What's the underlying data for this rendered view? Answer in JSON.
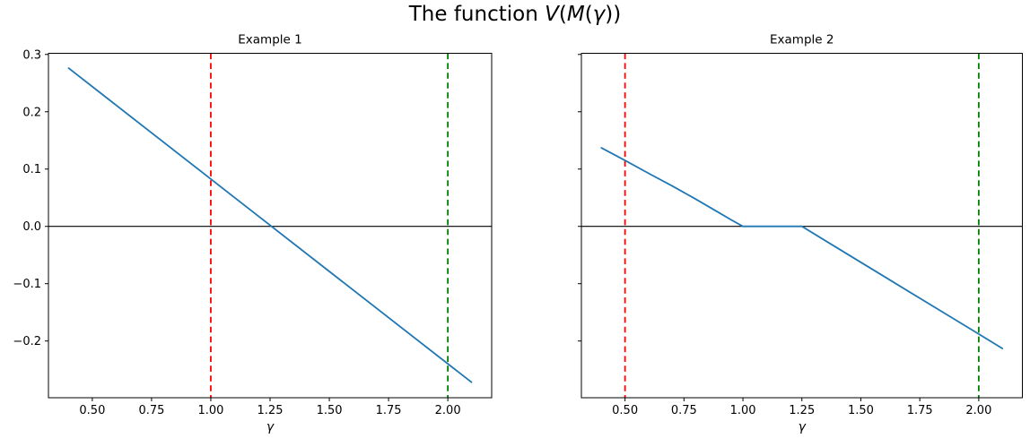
{
  "figure": {
    "background": "#ffffff",
    "suptitle": {
      "text": "The function V(M(γ))",
      "segments": [
        {
          "t": "The function ",
          "i": false
        },
        {
          "t": "V",
          "i": true
        },
        {
          "t": "(",
          "i": false
        },
        {
          "t": "M",
          "i": true
        },
        {
          "t": "(",
          "i": false
        },
        {
          "t": "γ",
          "i": true
        },
        {
          "t": "))",
          "i": false
        }
      ]
    }
  },
  "chart_data": {
    "type": "line",
    "title": "The function V(M(γ))",
    "xlabel": "γ",
    "ylabel": "",
    "grid": false,
    "legend_position": "none",
    "xlim": [
      0.315,
      2.185
    ],
    "ylim": [
      -0.299,
      0.302
    ],
    "x_ticks": {
      "values": [
        0.5,
        0.75,
        1.0,
        1.25,
        1.5,
        1.75,
        2.0
      ],
      "labels": [
        "0.50",
        "0.75",
        "1.00",
        "1.25",
        "1.50",
        "1.75",
        "2.00"
      ]
    },
    "y_ticks": {
      "values": [
        0.3,
        0.2,
        0.1,
        0.0,
        -0.1,
        -0.2
      ],
      "labels": [
        "0.3",
        "0.2",
        "0.1",
        "0.0",
        "−0.1",
        "−0.2"
      ]
    },
    "line_color": "#1f77b4",
    "zero_line_color": "#000000",
    "panels": [
      {
        "title": "Example 1",
        "show_y_tick_labels": true,
        "hlines": [
          {
            "name": "zero-line",
            "y": 0.0,
            "color": "#000000",
            "style": "solid"
          }
        ],
        "vlines": [
          {
            "name": "red-dashed-vline",
            "x": 1.0,
            "color": "#ff0000",
            "style": "dashed"
          },
          {
            "name": "green-dashed-vline",
            "x": 2.0,
            "color": "#008000",
            "style": "dashed"
          }
        ],
        "series": [
          {
            "name": "V-of-M-gamma",
            "color": "#1f77b4",
            "points": [
              [
                0.4,
                0.276
              ],
              [
                1.256,
                0.0
              ],
              [
                2.1,
                -0.272
              ]
            ]
          }
        ]
      },
      {
        "title": "Example 2",
        "show_y_tick_labels": false,
        "hlines": [
          {
            "name": "zero-line",
            "y": 0.0,
            "color": "#000000",
            "style": "solid"
          }
        ],
        "vlines": [
          {
            "name": "red-dashed-vline",
            "x": 0.5,
            "color": "#ff0000",
            "style": "dashed"
          },
          {
            "name": "green-dashed-vline",
            "x": 2.0,
            "color": "#008000",
            "style": "dashed"
          }
        ],
        "series": [
          {
            "name": "V-of-M-gamma",
            "color": "#1f77b4",
            "points": [
              [
                0.4,
                0.137
              ],
              [
                0.5,
                0.115
              ],
              [
                0.6,
                0.0925
              ],
              [
                0.7,
                0.0705
              ],
              [
                0.8,
                0.0475
              ],
              [
                0.9,
                0.0235
              ],
              [
                0.95,
                0.0115
              ],
              [
                1.0,
                0.0
              ],
              [
                1.1,
                0.0
              ],
              [
                1.2,
                0.0
              ],
              [
                1.25,
                0.0
              ],
              [
                1.4,
                -0.0376
              ],
              [
                1.6,
                -0.0877
              ],
              [
                1.8,
                -0.1378
              ],
              [
                2.0,
                -0.1879
              ],
              [
                2.1,
                -0.213
              ]
            ]
          }
        ]
      }
    ]
  }
}
